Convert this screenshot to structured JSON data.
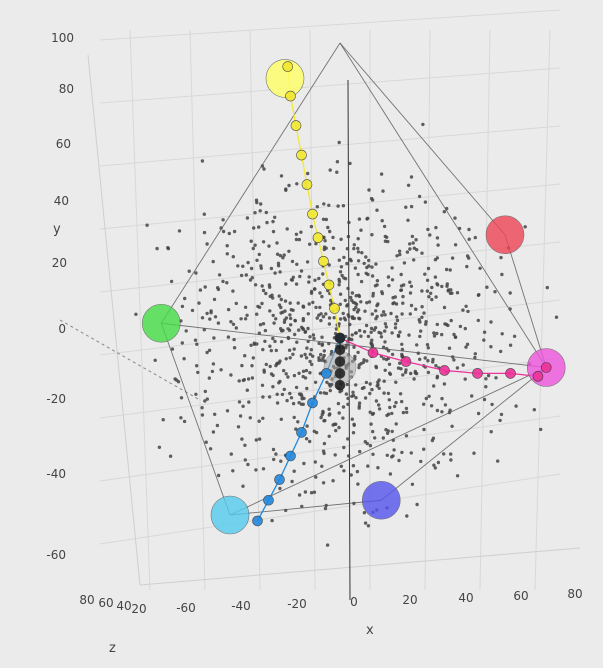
{
  "chart_data": {
    "type": "scatter",
    "projection": "3d",
    "axes": {
      "x": {
        "label": "x",
        "ticks": [
          "-60",
          "-40",
          "-20",
          "0",
          "20",
          "40",
          "60",
          "80"
        ]
      },
      "y": {
        "label": "y",
        "ticks": [
          "-60",
          "-40",
          "-20",
          "0",
          "20",
          "40",
          "60",
          "80",
          "100"
        ]
      },
      "z": {
        "label": "z",
        "ticks": [
          "80",
          "60",
          "40",
          "20"
        ]
      }
    },
    "grid": true,
    "legend": "none",
    "cloud": {
      "color": "#444444",
      "point_count": 1000,
      "center": [
        0,
        0,
        0
      ],
      "spread": 30
    },
    "polyhedron": {
      "stroke": "#555555",
      "vertices": {
        "top": [
          0,
          100,
          0
        ],
        "red": [
          60,
          35,
          0
        ],
        "magenta": [
          75,
          -10,
          0
        ],
        "blue": [
          15,
          -55,
          0
        ],
        "cyan": [
          -40,
          -60,
          0
        ],
        "green": [
          -65,
          5,
          0
        ]
      }
    },
    "spheres": [
      {
        "name": "yellow",
        "color": "#ffff66",
        "center": [
          -20,
          88,
          0
        ]
      },
      {
        "name": "red",
        "color": "#ee4455",
        "center": [
          60,
          35,
          0
        ]
      },
      {
        "name": "green",
        "color": "#44dd44",
        "center": [
          -65,
          5,
          0
        ]
      },
      {
        "name": "magenta",
        "color": "#ee55dd",
        "center": [
          75,
          -10,
          0
        ]
      },
      {
        "name": "blue",
        "color": "#5555ee",
        "center": [
          15,
          -55,
          0
        ]
      },
      {
        "name": "cyan",
        "color": "#55ccee",
        "center": [
          -40,
          -60,
          0
        ]
      },
      {
        "name": "gray",
        "color": "#aaaaaa",
        "center": [
          0,
          -10,
          0
        ]
      }
    ],
    "series": [
      {
        "color": "#f2e830",
        "points": [
          [
            0,
            0,
            0
          ],
          [
            -2,
            10,
            0
          ],
          [
            -4,
            18,
            0
          ],
          [
            -6,
            26,
            0
          ],
          [
            -8,
            34,
            0
          ],
          [
            -10,
            42,
            0
          ],
          [
            -12,
            52,
            0
          ],
          [
            -14,
            62,
            0
          ],
          [
            -16,
            72,
            0
          ],
          [
            -18,
            82,
            0
          ],
          [
            -19,
            92,
            0
          ]
        ]
      },
      {
        "color": "#ee3399",
        "points": [
          [
            0,
            0,
            0
          ],
          [
            12,
            -5,
            0
          ],
          [
            24,
            -8,
            0
          ],
          [
            38,
            -11,
            0
          ],
          [
            50,
            -12,
            0
          ],
          [
            62,
            -12,
            0
          ],
          [
            72,
            -13,
            0
          ],
          [
            75,
            -10,
            0
          ]
        ]
      },
      {
        "color": "#2288dd",
        "points": [
          [
            0,
            0,
            0
          ],
          [
            -5,
            -12,
            0
          ],
          [
            -10,
            -22,
            0
          ],
          [
            -14,
            -32,
            0
          ],
          [
            -18,
            -40,
            0
          ],
          [
            -22,
            -48,
            0
          ],
          [
            -26,
            -55,
            0
          ],
          [
            -30,
            -62,
            0
          ]
        ]
      },
      {
        "color": "#222222",
        "points": [
          [
            0,
            0,
            0
          ],
          [
            0,
            -4,
            0
          ],
          [
            0,
            -8,
            0
          ],
          [
            0,
            -12,
            0
          ],
          [
            0,
            -16,
            0
          ]
        ]
      }
    ]
  }
}
